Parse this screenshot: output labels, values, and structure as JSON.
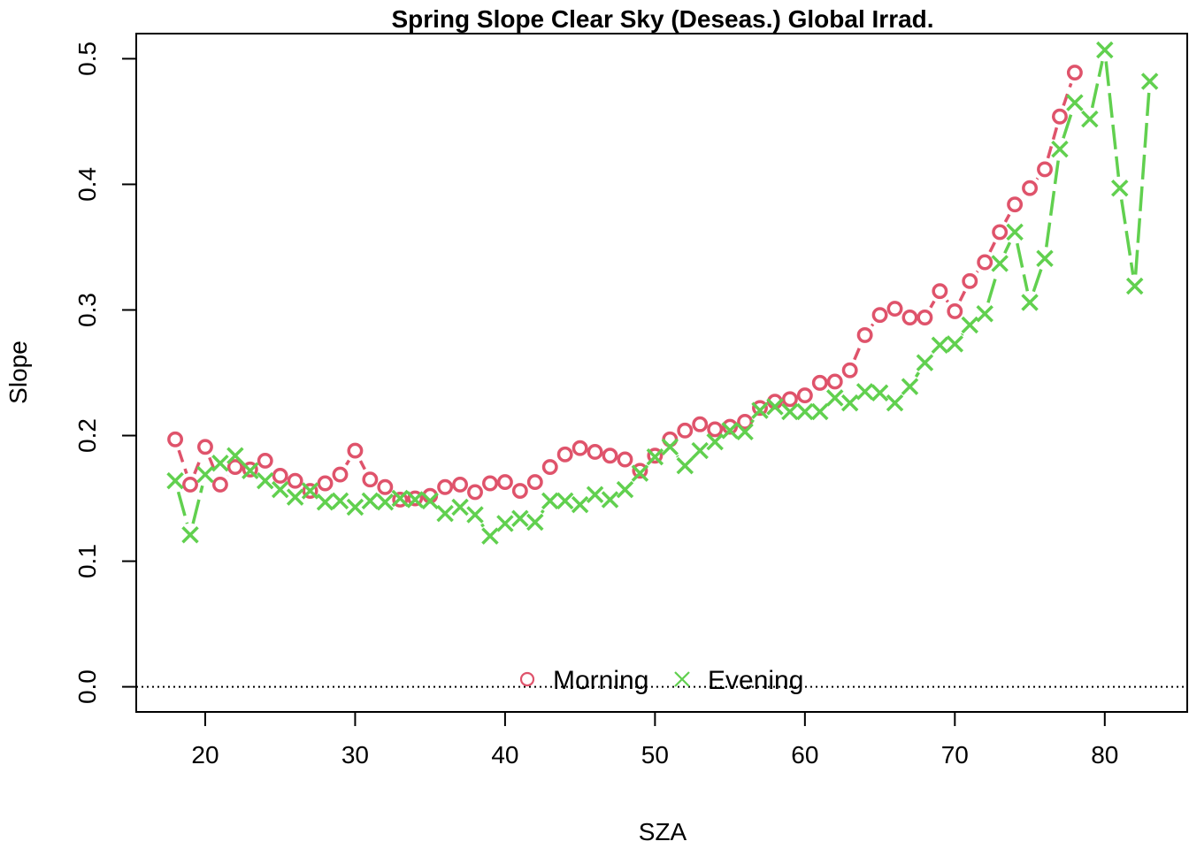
{
  "chart_data": {
    "type": "line",
    "title": "Spring Slope Clear Sky (Deseas.) Global Irrad.",
    "xlabel": "SZA",
    "ylabel": "Slope",
    "xlim": [
      15.4,
      85.5
    ],
    "ylim": [
      -0.02,
      0.52
    ],
    "xticks": [
      "20",
      "30",
      "40",
      "50",
      "60",
      "70",
      "80"
    ],
    "yticks": [
      "0.0",
      "0.1",
      "0.2",
      "0.3",
      "0.4",
      "0.5"
    ],
    "reference_line": {
      "y": 0,
      "style": "dotted"
    },
    "legend": {
      "placement": "bottom-center",
      "horizontal": true
    },
    "series": [
      {
        "name": "Morning",
        "color": "#DF536B",
        "marker": "circle",
        "line": "dashed",
        "x": [
          18,
          19,
          20,
          21,
          22,
          23,
          24,
          25,
          26,
          27,
          28,
          29,
          30,
          31,
          32,
          33,
          34,
          35,
          36,
          37,
          38,
          39,
          40,
          41,
          42,
          43,
          44,
          45,
          46,
          47,
          48,
          49,
          50,
          51,
          52,
          53,
          54,
          55,
          56,
          57,
          58,
          59,
          60,
          61,
          62,
          63,
          64,
          65,
          66,
          67,
          68,
          69,
          70,
          71,
          72,
          73,
          74,
          75,
          76,
          77,
          78
        ],
        "y": [
          0.197,
          0.161,
          0.191,
          0.161,
          0.175,
          0.173,
          0.18,
          0.168,
          0.164,
          0.156,
          0.162,
          0.169,
          0.188,
          0.165,
          0.159,
          0.149,
          0.15,
          0.152,
          0.159,
          0.161,
          0.155,
          0.162,
          0.163,
          0.156,
          0.163,
          0.175,
          0.185,
          0.19,
          0.187,
          0.184,
          0.181,
          0.172,
          0.184,
          0.197,
          0.204,
          0.209,
          0.205,
          0.207,
          0.211,
          0.222,
          0.227,
          0.229,
          0.232,
          0.242,
          0.243,
          0.252,
          0.28,
          0.296,
          0.301,
          0.294,
          0.294,
          0.315,
          0.299,
          0.323,
          0.338,
          0.362,
          0.384,
          0.397,
          0.412,
          0.454,
          0.489
        ]
      },
      {
        "name": "Evening",
        "color": "#61D04F",
        "marker": "cross",
        "line": "longdash",
        "x": [
          18,
          19,
          20,
          21,
          22,
          23,
          24,
          25,
          26,
          27,
          28,
          29,
          30,
          31,
          32,
          33,
          34,
          35,
          36,
          37,
          38,
          39,
          40,
          41,
          42,
          43,
          44,
          45,
          46,
          47,
          48,
          49,
          50,
          51,
          52,
          53,
          54,
          55,
          56,
          57,
          58,
          59,
          60,
          61,
          62,
          63,
          64,
          65,
          66,
          67,
          68,
          69,
          70,
          71,
          72,
          73,
          74,
          75,
          76,
          77,
          78,
          79,
          80,
          81,
          82,
          83
        ],
        "y": [
          0.164,
          0.121,
          0.169,
          0.178,
          0.184,
          0.172,
          0.164,
          0.157,
          0.151,
          0.156,
          0.147,
          0.148,
          0.143,
          0.148,
          0.147,
          0.15,
          0.149,
          0.148,
          0.138,
          0.143,
          0.137,
          0.12,
          0.13,
          0.134,
          0.131,
          0.148,
          0.148,
          0.145,
          0.153,
          0.149,
          0.157,
          0.17,
          0.183,
          0.191,
          0.176,
          0.188,
          0.195,
          0.204,
          0.203,
          0.22,
          0.223,
          0.219,
          0.219,
          0.219,
          0.23,
          0.226,
          0.235,
          0.234,
          0.226,
          0.239,
          0.258,
          0.272,
          0.273,
          0.288,
          0.297,
          0.337,
          0.362,
          0.306,
          0.341,
          0.428,
          0.465,
          0.452,
          0.507,
          0.397,
          0.319,
          0.482
        ]
      }
    ]
  }
}
